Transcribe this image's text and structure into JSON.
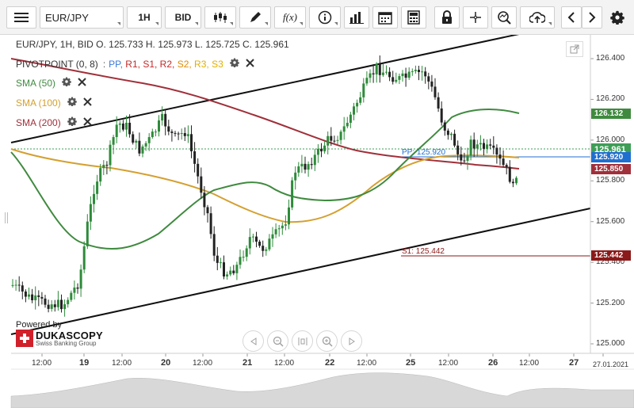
{
  "toolbar": {
    "symbol": "EUR/JPY",
    "timeframe": "1H",
    "price_side": "BID",
    "fx_label": "f(x)"
  },
  "chart_info": {
    "ohlc": "EUR/JPY, 1H, BID   O. 125.733  H. 125.973  L. 125.725  C. 125.961"
  },
  "indicators": {
    "pivot": {
      "name": "PIVOTPOINT (0, 8)",
      "colon": ":",
      "levels": [
        "PP",
        "R1",
        "S1",
        "R2",
        "S2",
        "R3",
        "S3"
      ],
      "colors": [
        "#3a7bd5",
        "#c62828",
        "#c62828",
        "#c62828",
        "#e08a00",
        "#e0b000",
        "#e0b000"
      ]
    },
    "sma50": {
      "label": "SMA (50)",
      "color": "#3f8a3f"
    },
    "sma100": {
      "label": "SMA (100)",
      "color": "#d4a030"
    },
    "sma200": {
      "label": "SMA (200)",
      "color": "#a0303a"
    }
  },
  "price_axis": {
    "ticks": [
      "126.400",
      "126.200",
      "126.000",
      "125.800",
      "125.600",
      "125.400",
      "125.200",
      "125.000"
    ],
    "tags": [
      {
        "value": "126.132",
        "color": "#3f8a3f"
      },
      {
        "value": "125.961",
        "color": "#3e9e56"
      },
      {
        "value": "125.920",
        "color": "#1f6fd0"
      },
      {
        "value": "125.850",
        "color": "#a0303a"
      },
      {
        "value": "125.442",
        "color": "#8b1a1a"
      }
    ]
  },
  "level_labels": {
    "pp": "PP: 125.920",
    "s1": "S1: 125.442"
  },
  "time_axis": {
    "labels": [
      "12:00",
      "19",
      "12:00",
      "20",
      "12:00",
      "21",
      "12:00",
      "22",
      "12:00",
      "25",
      "12:00",
      "26",
      "12:00",
      "27",
      "27.01.2021"
    ]
  },
  "branding": {
    "powered": "Powered by",
    "name": "DUKASCOPY",
    "sub": "Swiss Banking Group"
  }
}
